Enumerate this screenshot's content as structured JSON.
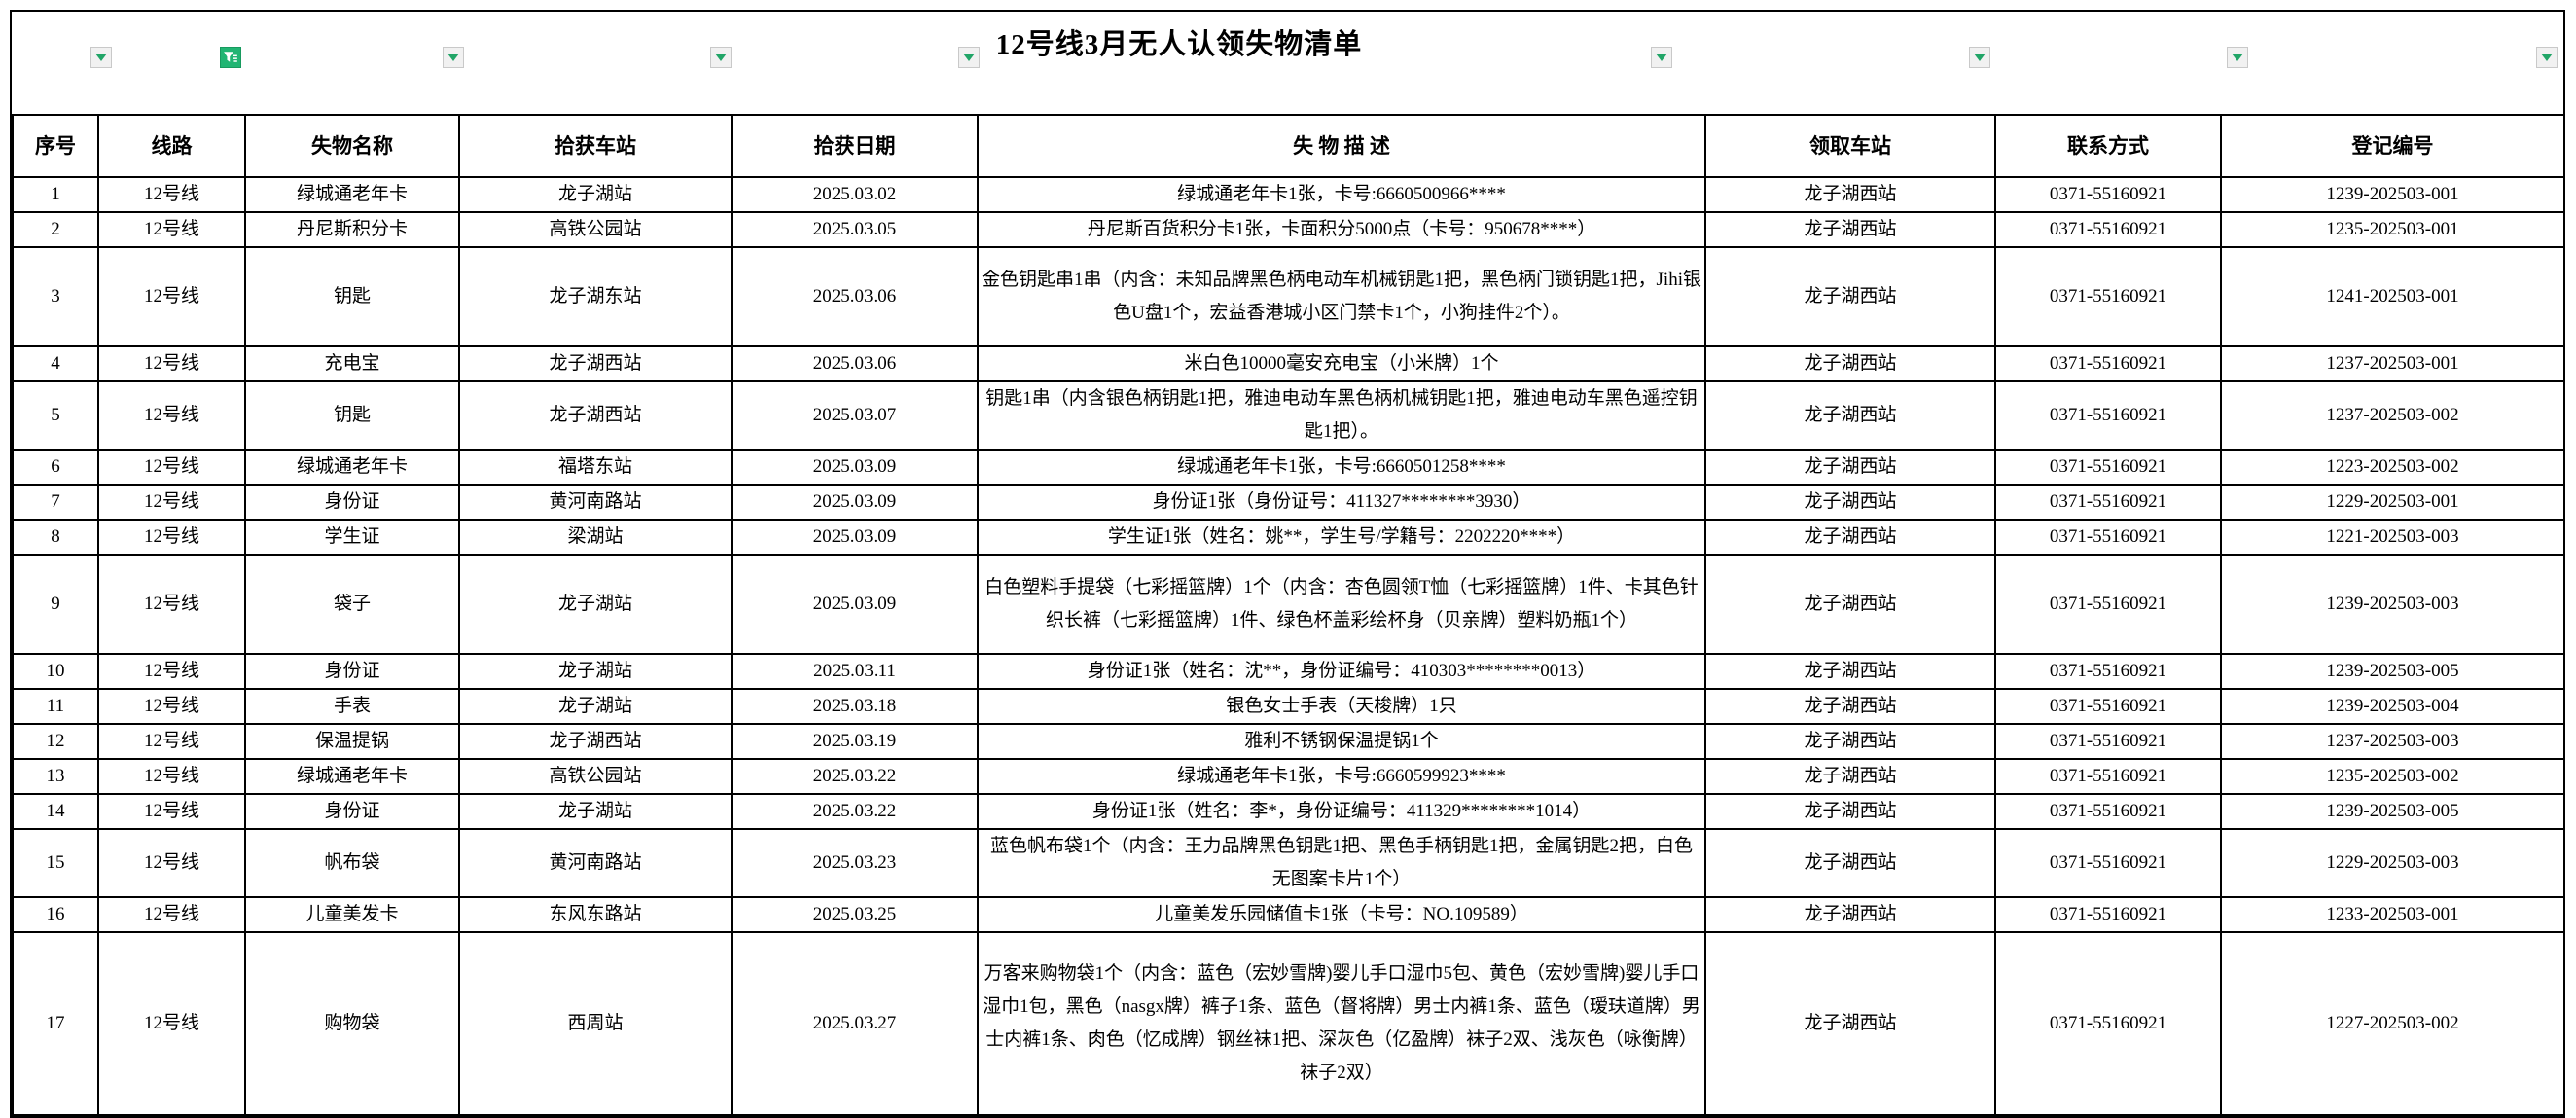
{
  "title": "12号线3月无人认领失物清单",
  "colors": {
    "accent_green": "#21a567",
    "active_filter_green": "#21b573",
    "border": "#000000",
    "background": "#ffffff"
  },
  "filter_icons": [
    {
      "name": "filter-dropdown-icon",
      "state": "inactive"
    },
    {
      "name": "active-filter-funnel-icon",
      "state": "active"
    },
    {
      "name": "filter-dropdown-icon",
      "state": "inactive"
    },
    {
      "name": "filter-dropdown-icon",
      "state": "inactive"
    },
    {
      "name": "filter-dropdown-icon",
      "state": "inactive"
    },
    {
      "name": "filter-dropdown-icon",
      "state": "inactive"
    },
    {
      "name": "filter-dropdown-icon",
      "state": "inactive"
    },
    {
      "name": "filter-dropdown-icon",
      "state": "inactive"
    },
    {
      "name": "filter-dropdown-icon",
      "state": "inactive"
    }
  ],
  "table": {
    "columns": [
      "序号",
      "线路",
      "失物名称",
      "拾获车站",
      "拾获日期",
      "失 物 描 述",
      "领取车站",
      "联系方式",
      "登记编号"
    ],
    "rows": [
      [
        "1",
        "12号线",
        "绿城通老年卡",
        "龙子湖站",
        "2025.03.02",
        "绿城通老年卡1张，卡号:6660500966****",
        "龙子湖西站",
        "0371-55160921",
        "1239-202503-001"
      ],
      [
        "2",
        "12号线",
        "丹尼斯积分卡",
        "高铁公园站",
        "2025.03.05",
        "丹尼斯百货积分卡1张，卡面积分5000点（卡号：950678****）",
        "龙子湖西站",
        "0371-55160921",
        "1235-202503-001"
      ],
      [
        "3",
        "12号线",
        "钥匙",
        "龙子湖东站",
        "2025.03.06",
        "金色钥匙串1串（内含：未知品牌黑色柄电动车机械钥匙1把，黑色柄门锁钥匙1把，Jihi银色U盘1个，宏益香港城小区门禁卡1个，小狗挂件2个）。",
        "龙子湖西站",
        "0371-55160921",
        "1241-202503-001"
      ],
      [
        "4",
        "12号线",
        "充电宝",
        "龙子湖西站",
        "2025.03.06",
        "米白色10000毫安充电宝（小米牌）1个",
        "龙子湖西站",
        "0371-55160921",
        "1237-202503-001"
      ],
      [
        "5",
        "12号线",
        "钥匙",
        "龙子湖西站",
        "2025.03.07",
        "钥匙1串（内含银色柄钥匙1把，雅迪电动车黑色柄机械钥匙1把，雅迪电动车黑色遥控钥匙1把）。",
        "龙子湖西站",
        "0371-55160921",
        "1237-202503-002"
      ],
      [
        "6",
        "12号线",
        "绿城通老年卡",
        "福塔东站",
        "2025.03.09",
        "绿城通老年卡1张，卡号:6660501258****",
        "龙子湖西站",
        "0371-55160921",
        "1223-202503-002"
      ],
      [
        "7",
        "12号线",
        "身份证",
        "黄河南路站",
        "2025.03.09",
        "身份证1张（身份证号：411327********3930）",
        "龙子湖西站",
        "0371-55160921",
        "1229-202503-001"
      ],
      [
        "8",
        "12号线",
        "学生证",
        "梁湖站",
        "2025.03.09",
        "学生证1张（姓名：姚**，学生号/学籍号：2202220****）",
        "龙子湖西站",
        "0371-55160921",
        "1221-202503-003"
      ],
      [
        "9",
        "12号线",
        "袋子",
        "龙子湖站",
        "2025.03.09",
        "白色塑料手提袋（七彩摇篮牌）1个（内含：杏色圆领T恤（七彩摇篮牌）1件、卡其色针织长裤（七彩摇篮牌）1件、绿色杯盖彩绘杯身（贝亲牌）塑料奶瓶1个）",
        "龙子湖西站",
        "0371-55160921",
        "1239-202503-003"
      ],
      [
        "10",
        "12号线",
        "身份证",
        "龙子湖站",
        "2025.03.11",
        "身份证1张（姓名：沈**，身份证编号：410303********0013）",
        "龙子湖西站",
        "0371-55160921",
        "1239-202503-005"
      ],
      [
        "11",
        "12号线",
        "手表",
        "龙子湖站",
        "2025.03.18",
        "银色女士手表（天梭牌）1只",
        "龙子湖西站",
        "0371-55160921",
        "1239-202503-004"
      ],
      [
        "12",
        "12号线",
        "保温提锅",
        "龙子湖西站",
        "2025.03.19",
        "雅利不锈钢保温提锅1个",
        "龙子湖西站",
        "0371-55160921",
        "1237-202503-003"
      ],
      [
        "13",
        "12号线",
        "绿城通老年卡",
        "高铁公园站",
        "2025.03.22",
        "绿城通老年卡1张，卡号:6660599923****",
        "龙子湖西站",
        "0371-55160921",
        "1235-202503-002"
      ],
      [
        "14",
        "12号线",
        "身份证",
        "龙子湖站",
        "2025.03.22",
        "身份证1张（姓名：李*，身份证编号：411329********1014）",
        "龙子湖西站",
        "0371-55160921",
        "1239-202503-005"
      ],
      [
        "15",
        "12号线",
        "帆布袋",
        "黄河南路站",
        "2025.03.23",
        "蓝色帆布袋1个（内含：王力品牌黑色钥匙1把、黑色手柄钥匙1把，金属钥匙2把，白色无图案卡片1个）",
        "龙子湖西站",
        "0371-55160921",
        "1229-202503-003"
      ],
      [
        "16",
        "12号线",
        "儿童美发卡",
        "东风东路站",
        "2025.03.25",
        "儿童美发乐园储值卡1张（卡号：NO.109589）",
        "龙子湖西站",
        "0371-55160921",
        "1233-202503-001"
      ],
      [
        "17",
        "12号线",
        "购物袋",
        "西周站",
        "2025.03.27",
        "万客来购物袋1个（内含：蓝色（宏妙雪牌)婴儿手口湿巾5包、黄色（宏妙雪牌)婴儿手口湿巾1包，黑色（nasgx牌）裤子1条、蓝色（督将牌）男士内裤1条、蓝色（瑷玞道牌）男士内裤1条、肉色（忆成牌）钢丝袜1把、深灰色（亿盈牌）袜子2双、浅灰色（咏衡牌）袜子2双）",
        "龙子湖西站",
        "0371-55160921",
        "1227-202503-002"
      ]
    ]
  }
}
